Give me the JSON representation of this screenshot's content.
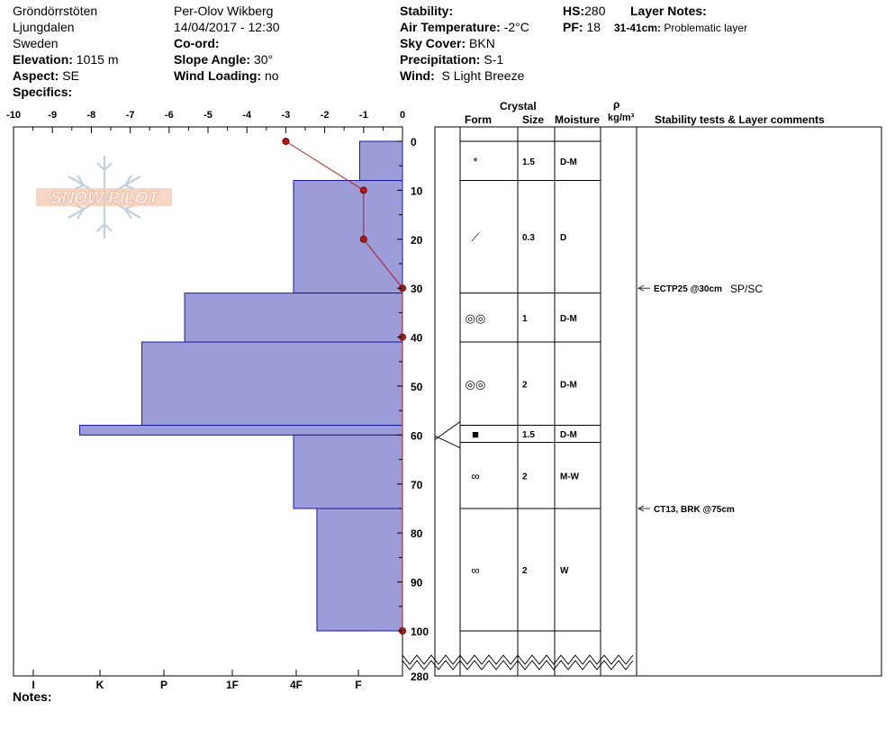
{
  "header": {
    "location": "Gröndörrstöten",
    "region": "Ljungdalen",
    "country": "Sweden",
    "elevation_label": "Elevation:",
    "elevation_value": "1015 m",
    "aspect_label": "Aspect:",
    "aspect_value": "SE",
    "specifics_label": "Specifics:",
    "observer": "Per-Olov Wikberg",
    "datetime": "14/04/2017 - 12:30",
    "coord_label": "Co-ord:",
    "slope_label": "Slope Angle:",
    "slope_value": "30°",
    "wind_loading_label": "Wind Loading:",
    "wind_loading_value": "no",
    "stability_label": "Stability:",
    "air_temp_label": "Air Temperature:",
    "air_temp_value": "-2°C",
    "sky_label": "Sky Cover:",
    "sky_value": "BKN",
    "precip_label": "Precipitation:",
    "precip_value": "S-1",
    "wind_label": "Wind:",
    "wind_value": "S Light Breeze",
    "hs_label": "HS:",
    "hs_value": "280",
    "pf_label": "PF:",
    "pf_value": "18",
    "layer_notes_label": "Layer Notes:",
    "layer_note_range": "31-41cm:",
    "layer_note_text": "Problematic layer"
  },
  "logo_text": "SNOW PILOT",
  "notes_label": "Notes:",
  "columns": {
    "crystal": "Crystal",
    "form": "Form",
    "size": "Size",
    "moisture": "Moisture",
    "rho": "ρ",
    "density_unit": "kg/m³",
    "comments": "Stability tests & Layer comments"
  },
  "colors": {
    "hardness_fill": "#9c9cd8",
    "hardness_stroke": "#1a1aa0",
    "temp_line": "#b01c1c"
  },
  "chart_data": {
    "type": "bar",
    "temperature_axis": {
      "ticks": [
        -10,
        -9,
        -8,
        -7,
        -6,
        -5,
        -4,
        -3,
        -2,
        -1,
        0
      ],
      "range": [
        -10,
        0
      ]
    },
    "depth_axis": {
      "ticks": [
        0,
        10,
        20,
        30,
        40,
        50,
        60,
        70,
        80,
        90,
        100
      ],
      "range": [
        0,
        100
      ],
      "bottom_label": "280"
    },
    "hardness_axis": {
      "labels": [
        "I",
        "K",
        "P",
        "1F",
        "4F",
        "F"
      ]
    },
    "hardness_profile": [
      {
        "top": 0,
        "bottom": 8,
        "temp_scale_value": -1.1
      },
      {
        "top": 8,
        "bottom": 31,
        "temp_scale_value": -2.8
      },
      {
        "top": 31,
        "bottom": 41,
        "temp_scale_value": -5.6
      },
      {
        "top": 41,
        "bottom": 58,
        "temp_scale_value": -6.7
      },
      {
        "top": 58,
        "bottom": 60,
        "temp_scale_value": -8.3
      },
      {
        "top": 60,
        "bottom": 75,
        "temp_scale_value": -2.8
      },
      {
        "top": 75,
        "bottom": 100,
        "temp_scale_value": -2.2
      }
    ],
    "temperature_profile": [
      {
        "depth": 0,
        "temp": -3
      },
      {
        "depth": 10,
        "temp": -1
      },
      {
        "depth": 20,
        "temp": -1
      },
      {
        "depth": 30,
        "temp": 0
      },
      {
        "depth": 40,
        "temp": 0
      },
      {
        "depth": 100,
        "temp": 0
      }
    ],
    "layers": [
      {
        "top": 0,
        "bottom": 8,
        "form": "*",
        "size": "1.5",
        "moisture": "D-M"
      },
      {
        "top": 8,
        "bottom": 31,
        "form": "⟋",
        "size": "0.3",
        "moisture": "D"
      },
      {
        "top": 31,
        "bottom": 41,
        "form": "◎◎",
        "size": "1",
        "moisture": "D-M"
      },
      {
        "top": 41,
        "bottom": 58,
        "form": "◎◎",
        "size": "2",
        "moisture": "D-M"
      },
      {
        "top": 58,
        "bottom": 61.5,
        "form": "■",
        "size": "1.5",
        "moisture": "D-M"
      },
      {
        "top": 61.5,
        "bottom": 75,
        "form": "∞",
        "size": "2",
        "moisture": "M-W"
      },
      {
        "top": 75,
        "bottom": 100,
        "form": "∞",
        "size": "2",
        "moisture": "W"
      }
    ],
    "stability_tests": [
      {
        "depth": 30,
        "text": "ECTP25 @30cm",
        "extra": "SP/SC"
      },
      {
        "depth": 75,
        "text": "CT13, BRK @75cm",
        "extra": ""
      }
    ]
  }
}
